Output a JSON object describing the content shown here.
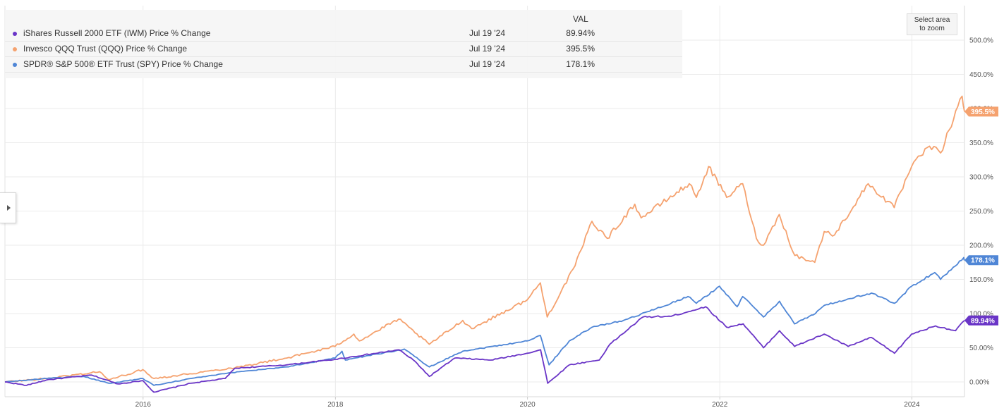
{
  "chart_data": {
    "type": "line",
    "x_start": "2014-07-25",
    "x_end": "2024-07-19",
    "x_ticks": [
      "2016",
      "2018",
      "2020",
      "2022",
      "2024"
    ],
    "y_ticks": [
      "0.00%",
      "50.00%",
      "100.0%",
      "150.0%",
      "200.0%",
      "250.0%",
      "300.0%",
      "350.0%",
      "400.0%",
      "450.0%",
      "500.0%"
    ],
    "ylim": [
      -20,
      525
    ],
    "legend": {
      "value_header": "VAL",
      "position": "top-left"
    },
    "zoom_button": {
      "line1": "Select area",
      "line2": "to zoom"
    },
    "series": [
      {
        "name": "iShares Russell 2000 ETF (IWM) Price % Change",
        "color": "#6a35c7",
        "last_date": "Jul 19 '24",
        "last_value_label": "89.94%",
        "points": [
          [
            "2014-07-25",
            0
          ],
          [
            "2014-10-15",
            -5
          ],
          [
            "2014-12-31",
            3
          ],
          [
            "2015-06-20",
            10
          ],
          [
            "2015-09-28",
            -3
          ],
          [
            "2015-12-31",
            2
          ],
          [
            "2016-02-11",
            -15
          ],
          [
            "2016-06-30",
            -2
          ],
          [
            "2016-11-08",
            5
          ],
          [
            "2016-12-15",
            20
          ],
          [
            "2017-06-30",
            25
          ],
          [
            "2017-12-31",
            33
          ],
          [
            "2018-08-31",
            47
          ],
          [
            "2018-10-31",
            30
          ],
          [
            "2018-12-24",
            8
          ],
          [
            "2019-03-31",
            35
          ],
          [
            "2019-08-15",
            32
          ],
          [
            "2019-12-31",
            42
          ],
          [
            "2020-02-20",
            47
          ],
          [
            "2020-03-18",
            -2
          ],
          [
            "2020-06-08",
            25
          ],
          [
            "2020-09-30",
            32
          ],
          [
            "2020-11-09",
            55
          ],
          [
            "2021-03-15",
            95
          ],
          [
            "2021-06-30",
            96
          ],
          [
            "2021-11-08",
            110
          ],
          [
            "2022-01-27",
            80
          ],
          [
            "2022-03-31",
            85
          ],
          [
            "2022-06-16",
            50
          ],
          [
            "2022-08-16",
            75
          ],
          [
            "2022-10-12",
            52
          ],
          [
            "2023-02-02",
            70
          ],
          [
            "2023-05-04",
            52
          ],
          [
            "2023-07-31",
            65
          ],
          [
            "2023-10-27",
            42
          ],
          [
            "2023-12-31",
            70
          ],
          [
            "2024-03-31",
            82
          ],
          [
            "2024-06-15",
            75
          ],
          [
            "2024-07-19",
            89.94
          ]
        ]
      },
      {
        "name": "Invesco QQQ Trust (QQQ) Price % Change",
        "color": "#f5a26f",
        "last_date": "Jul 19 '24",
        "last_value_label": "395.5%",
        "points": [
          [
            "2014-07-25",
            0
          ],
          [
            "2014-12-31",
            5
          ],
          [
            "2015-07-20",
            15
          ],
          [
            "2015-08-24",
            3
          ],
          [
            "2015-12-31",
            18
          ],
          [
            "2016-02-11",
            5
          ],
          [
            "2016-06-27",
            12
          ],
          [
            "2016-12-31",
            22
          ],
          [
            "2017-06-30",
            35
          ],
          [
            "2017-12-31",
            52
          ],
          [
            "2018-03-12",
            70
          ],
          [
            "2018-04-02",
            60
          ],
          [
            "2018-08-29",
            92
          ],
          [
            "2018-12-24",
            55
          ],
          [
            "2019-04-30",
            90
          ],
          [
            "2019-06-03",
            78
          ],
          [
            "2019-12-31",
            120
          ],
          [
            "2020-02-19",
            145
          ],
          [
            "2020-03-16",
            95
          ],
          [
            "2020-06-30",
            170
          ],
          [
            "2020-09-02",
            235
          ],
          [
            "2020-10-30",
            210
          ],
          [
            "2021-02-12",
            260
          ],
          [
            "2021-03-08",
            240
          ],
          [
            "2021-09-07",
            290
          ],
          [
            "2021-10-04",
            270
          ],
          [
            "2021-11-19",
            315
          ],
          [
            "2022-01-27",
            270
          ],
          [
            "2022-03-29",
            290
          ],
          [
            "2022-05-20",
            210
          ],
          [
            "2022-06-16",
            200
          ],
          [
            "2022-08-15",
            245
          ],
          [
            "2022-10-13",
            185
          ],
          [
            "2022-12-28",
            175
          ],
          [
            "2023-02-02",
            220
          ],
          [
            "2023-03-13",
            215
          ],
          [
            "2023-07-19",
            290
          ],
          [
            "2023-10-26",
            255
          ],
          [
            "2023-12-31",
            315
          ],
          [
            "2024-03-08",
            345
          ],
          [
            "2024-04-19",
            335
          ],
          [
            "2024-07-10",
            418
          ],
          [
            "2024-07-19",
            395.5
          ]
        ]
      },
      {
        "name": "SPDR® S&P 500® ETF Trust (SPY) Price % Change",
        "color": "#4f86d6",
        "last_date": "Jul 19 '24",
        "last_value_label": "178.1%",
        "points": [
          [
            "2014-07-25",
            0
          ],
          [
            "2014-12-31",
            5
          ],
          [
            "2015-05-20",
            8
          ],
          [
            "2015-08-24",
            -2
          ],
          [
            "2015-12-31",
            5
          ],
          [
            "2016-02-11",
            -5
          ],
          [
            "2016-06-30",
            5
          ],
          [
            "2016-12-31",
            15
          ],
          [
            "2017-06-30",
            22
          ],
          [
            "2017-12-31",
            35
          ],
          [
            "2018-01-26",
            45
          ],
          [
            "2018-02-08",
            32
          ],
          [
            "2018-09-20",
            48
          ],
          [
            "2018-12-24",
            22
          ],
          [
            "2019-04-30",
            45
          ],
          [
            "2019-12-31",
            60
          ],
          [
            "2020-02-19",
            68
          ],
          [
            "2020-03-23",
            25
          ],
          [
            "2020-06-08",
            60
          ],
          [
            "2020-09-02",
            80
          ],
          [
            "2020-12-31",
            90
          ],
          [
            "2021-06-30",
            115
          ],
          [
            "2021-09-02",
            125
          ],
          [
            "2021-10-04",
            115
          ],
          [
            "2021-12-31",
            140
          ],
          [
            "2022-03-08",
            110
          ],
          [
            "2022-03-29",
            125
          ],
          [
            "2022-06-16",
            95
          ],
          [
            "2022-08-16",
            118
          ],
          [
            "2022-10-12",
            85
          ],
          [
            "2022-12-30",
            100
          ],
          [
            "2023-02-02",
            112
          ],
          [
            "2023-07-31",
            130
          ],
          [
            "2023-10-27",
            115
          ],
          [
            "2023-12-31",
            140
          ],
          [
            "2024-03-28",
            160
          ],
          [
            "2024-04-19",
            150
          ],
          [
            "2024-07-16",
            182
          ],
          [
            "2024-07-19",
            178.1
          ]
        ]
      }
    ]
  }
}
